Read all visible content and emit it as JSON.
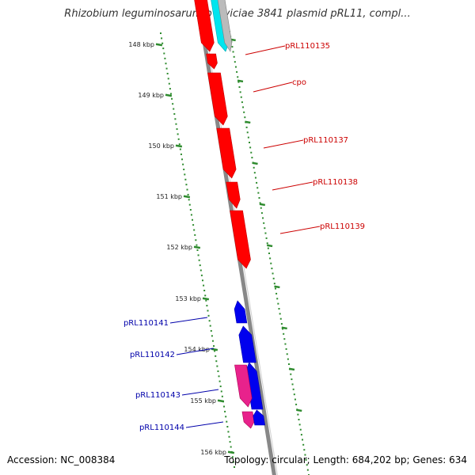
{
  "title": "Rhizobium leguminosarum bv. viciae 3841 plasmid pRL11, compl...",
  "footer": {
    "accession": "Accession: NC_008384",
    "summary": "Topology: circular; Length: 684,202 bp; Genes: 634"
  },
  "scale": {
    "unit": "kbp",
    "labels": [
      "148 kbp",
      "149 kbp",
      "150 kbp",
      "151 kbp",
      "152 kbp",
      "153 kbp",
      "154 kbp",
      "155 kbp",
      "156 kbp"
    ]
  },
  "colors": {
    "backbone": "#888888",
    "scale_ticks": "#2e8b2e",
    "gene_red": "#ff0000",
    "gene_blue": "#0000ee",
    "gene_magenta": "#e8228c",
    "gene_cyan": "#00e5ee",
    "label_red": "#cc0000",
    "label_blue": "#0000aa"
  },
  "genes_right": [
    {
      "label": "pRL110135",
      "color": "red"
    },
    {
      "label": "cpo",
      "color": "red"
    },
    {
      "label": "pRL110137",
      "color": "red"
    },
    {
      "label": "pRL110138",
      "color": "red"
    },
    {
      "label": "pRL110139",
      "color": "red"
    }
  ],
  "genes_left": [
    {
      "label": "pRL110141",
      "color": "blue"
    },
    {
      "label": "pRL110142",
      "color": "blue"
    },
    {
      "label": "pRL110143",
      "color": "blue"
    },
    {
      "label": "pRL110144",
      "color": "blue"
    }
  ]
}
